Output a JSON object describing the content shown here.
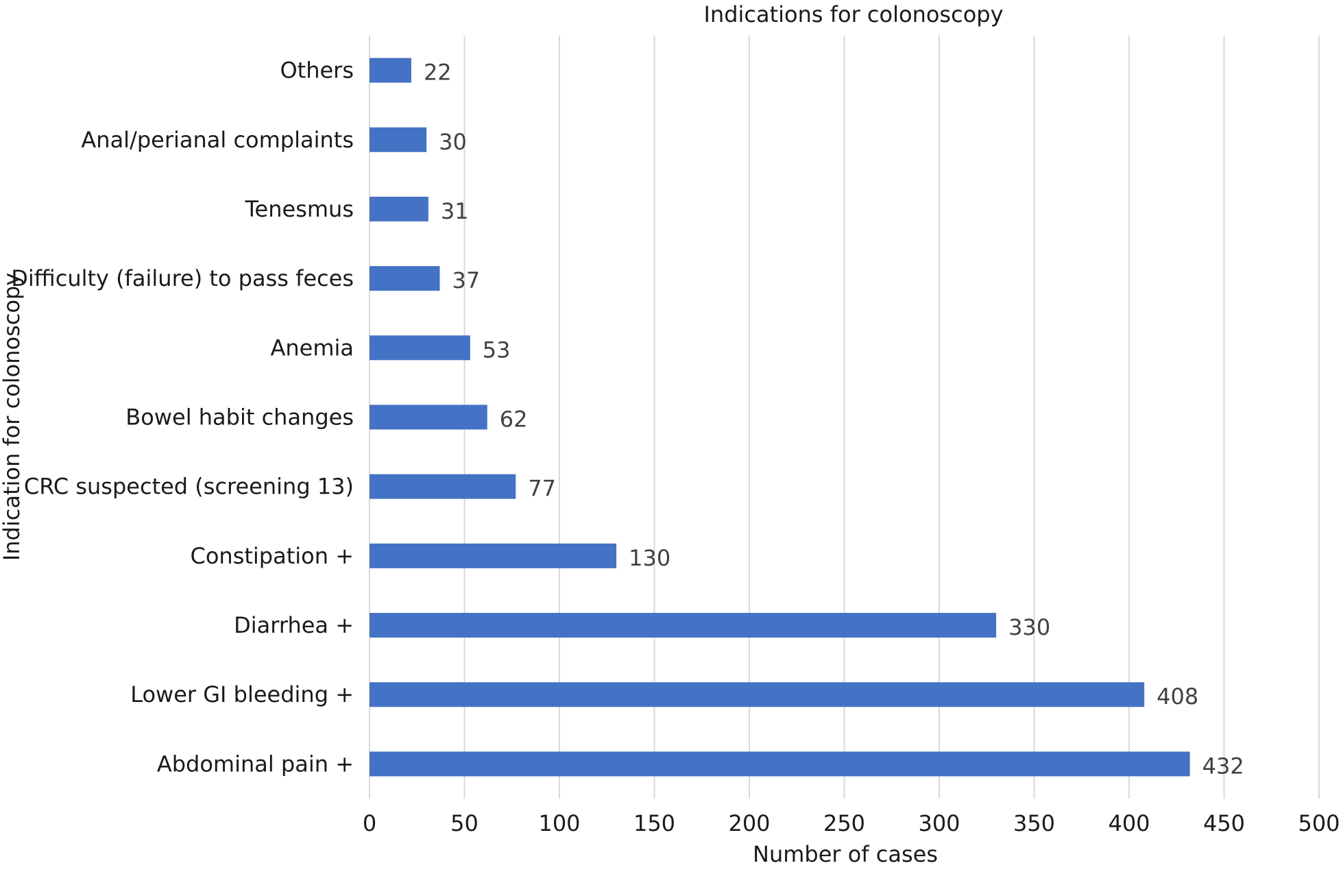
{
  "chart_data": {
    "type": "bar",
    "orientation": "horizontal",
    "title": "Indications for colonoscopy",
    "xlabel": "Number of cases",
    "ylabel": "Indication for colonoscopy",
    "categories": [
      "Others",
      "Anal/perianal complaints",
      "Tenesmus",
      "Difficulty (failure) to pass feces",
      "Anemia",
      "Bowel habit changes",
      "CRC suspected (screening 13)",
      "Constipation +",
      "Diarrhea +",
      "Lower GI bleeding +",
      "Abdominal pain +"
    ],
    "values": [
      22,
      30,
      31,
      37,
      53,
      62,
      77,
      130,
      330,
      408,
      432
    ],
    "xlim": [
      0,
      500
    ],
    "xticks": [
      0,
      50,
      100,
      150,
      200,
      250,
      300,
      350,
      400,
      450,
      500
    ],
    "grid": "vertical",
    "legend": "none",
    "colors": {
      "bar": "#4472c4",
      "grid": "#d9d9d9",
      "text": "#1a1a1a",
      "data_label": "#404040"
    }
  }
}
